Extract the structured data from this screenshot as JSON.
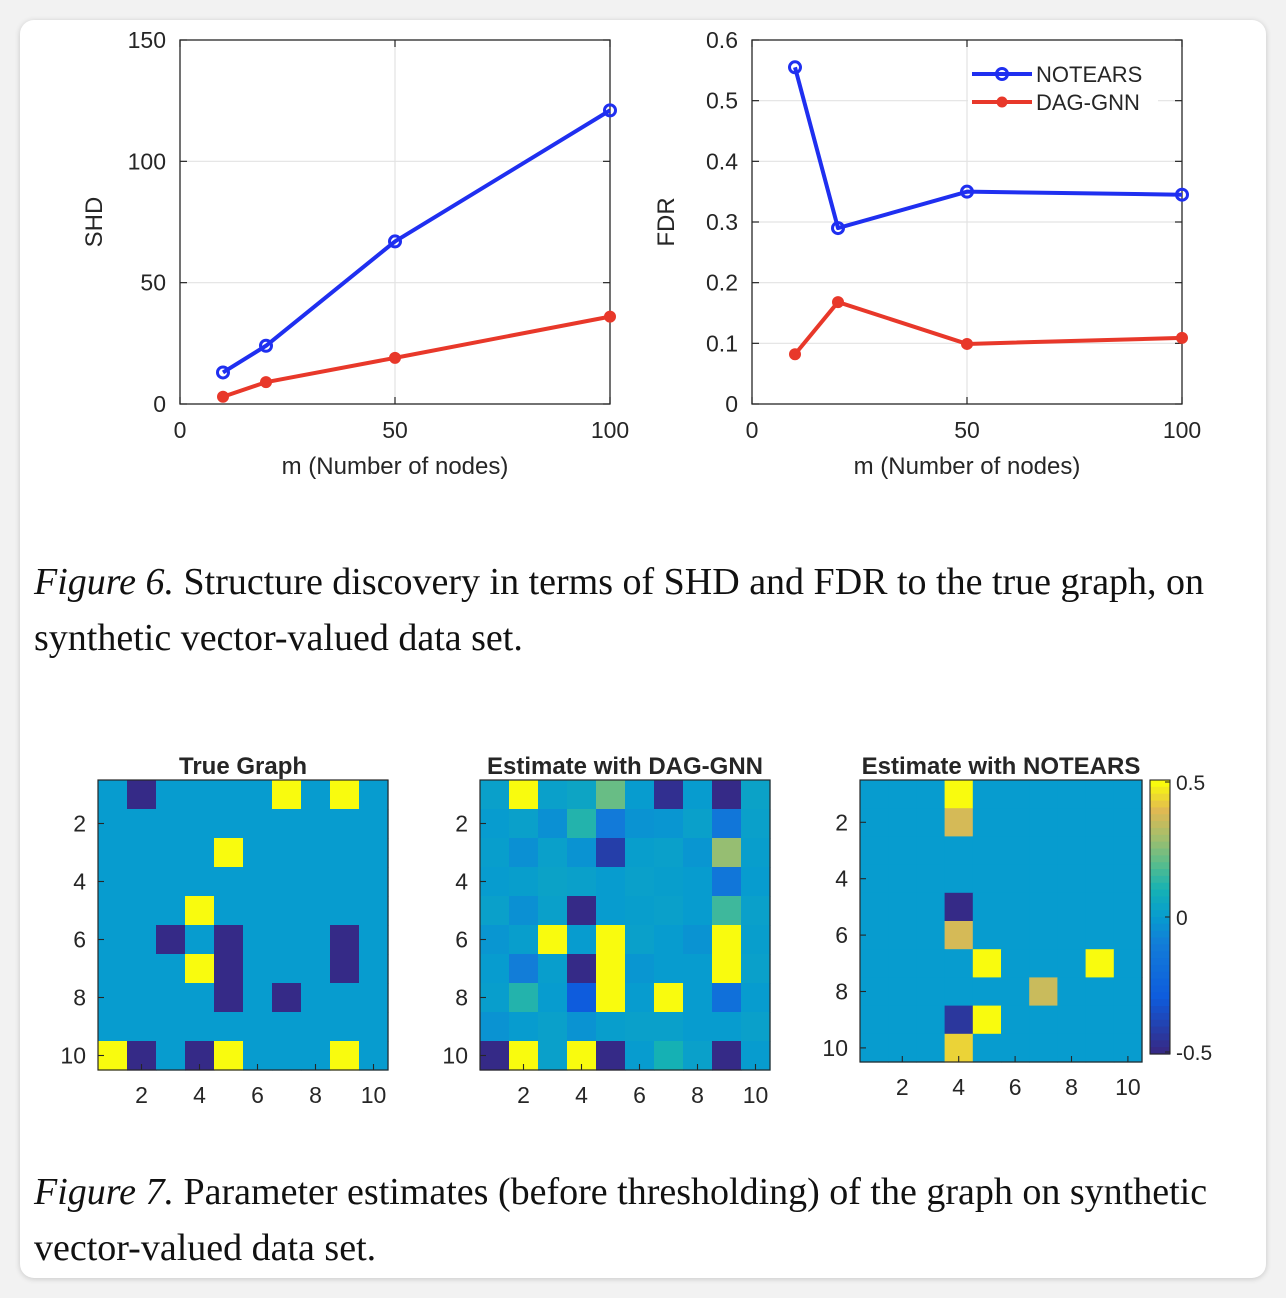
{
  "chart_data": [
    {
      "type": "line",
      "xlabel": "m (Number of nodes)",
      "ylabel": "SHD",
      "xlim": [
        0,
        100
      ],
      "ylim": [
        0,
        150
      ],
      "xticks": [
        "0",
        "50",
        "100"
      ],
      "yticks": [
        "0",
        "50",
        "100",
        "150"
      ],
      "grid": true,
      "series": [
        {
          "name": "NOTEARS",
          "color": "#1f2ff0",
          "x": [
            10,
            20,
            50,
            100
          ],
          "y": [
            13,
            24,
            67,
            121
          ]
        },
        {
          "name": "DAG-GNN",
          "color": "#e8382a",
          "x": [
            10,
            20,
            50,
            100
          ],
          "y": [
            3,
            9,
            19,
            36
          ]
        }
      ]
    },
    {
      "type": "line",
      "xlabel": "m (Number of nodes)",
      "ylabel": "FDR",
      "xlim": [
        0,
        100
      ],
      "ylim": [
        0,
        0.6
      ],
      "xticks": [
        "0",
        "50",
        "100"
      ],
      "yticks": [
        "0",
        "0.1",
        "0.2",
        "0.3",
        "0.4",
        "0.5",
        "0.6"
      ],
      "grid": true,
      "legend": "top-right",
      "series": [
        {
          "name": "NOTEARS",
          "color": "#1f2ff0",
          "x": [
            10,
            20,
            50,
            100
          ],
          "y": [
            0.555,
            0.29,
            0.35,
            0.345
          ]
        },
        {
          "name": "DAG-GNN",
          "color": "#e8382a",
          "x": [
            10,
            20,
            50,
            100
          ],
          "y": [
            0.082,
            0.168,
            0.099,
            0.109
          ]
        }
      ]
    },
    {
      "type": "heatmap",
      "title": "True Graph",
      "xticks": [
        "2",
        "4",
        "6",
        "8",
        "10"
      ],
      "yticks": [
        "2",
        "4",
        "6",
        "8",
        "10"
      ],
      "clim": [
        -0.5,
        0.5
      ],
      "matrix": [
        [
          0,
          -0.5,
          0,
          0,
          0,
          0,
          0.5,
          0,
          0.5,
          0
        ],
        [
          0,
          0,
          0,
          0,
          0,
          0,
          0,
          0,
          0,
          0
        ],
        [
          0,
          0,
          0,
          0,
          0.5,
          0,
          0,
          0,
          0,
          0
        ],
        [
          0,
          0,
          0,
          0,
          0,
          0,
          0,
          0,
          0,
          0
        ],
        [
          0,
          0,
          0,
          0.5,
          0,
          0,
          0,
          0,
          0,
          0
        ],
        [
          0,
          0,
          -0.5,
          0,
          -0.5,
          0,
          0,
          0,
          -0.5,
          0
        ],
        [
          0,
          0,
          0,
          0.5,
          -0.5,
          0,
          0,
          0,
          -0.5,
          0
        ],
        [
          0,
          0,
          0,
          0,
          -0.5,
          0,
          -0.5,
          0,
          0,
          0
        ],
        [
          0,
          0,
          0,
          0,
          0,
          0,
          0,
          0,
          0,
          0
        ],
        [
          0.5,
          -0.5,
          0,
          -0.5,
          0.5,
          0,
          0,
          0,
          0.5,
          0
        ]
      ]
    },
    {
      "type": "heatmap",
      "title": "Estimate with DAG-GNN",
      "xticks": [
        "2",
        "4",
        "6",
        "8",
        "10"
      ],
      "yticks": [
        "2",
        "4",
        "6",
        "8",
        "10"
      ],
      "clim": [
        -0.5,
        0.5
      ],
      "matrix": [
        [
          0.02,
          0.5,
          0.02,
          0.04,
          0.22,
          0.0,
          -0.48,
          0.0,
          -0.5,
          0.03
        ],
        [
          0.0,
          0.02,
          -0.04,
          0.12,
          -0.12,
          -0.03,
          -0.02,
          0.02,
          -0.14,
          0.02
        ],
        [
          0.01,
          -0.04,
          0.02,
          -0.03,
          -0.42,
          0.01,
          0.02,
          -0.02,
          0.28,
          0.01
        ],
        [
          0.0,
          0.01,
          0.03,
          0.02,
          0.0,
          0.02,
          0.01,
          0.0,
          -0.14,
          0.0
        ],
        [
          0.02,
          -0.04,
          0.02,
          -0.5,
          0.0,
          0.01,
          0.02,
          0.0,
          0.16,
          0.02
        ],
        [
          -0.02,
          0.01,
          0.5,
          0.0,
          0.5,
          0.02,
          0.0,
          -0.03,
          0.5,
          0.01
        ],
        [
          0.0,
          -0.1,
          0.01,
          -0.5,
          0.5,
          -0.02,
          0.0,
          0.0,
          0.5,
          0.02
        ],
        [
          0.01,
          0.12,
          0.0,
          -0.3,
          0.5,
          0.0,
          0.5,
          0.0,
          -0.18,
          0.0
        ],
        [
          -0.03,
          0.0,
          0.02,
          -0.03,
          0.01,
          0.02,
          0.02,
          0.0,
          0.0,
          0.02
        ],
        [
          -0.5,
          0.5,
          0.02,
          0.5,
          -0.5,
          0.0,
          0.1,
          0.02,
          -0.5,
          0.0
        ]
      ]
    },
    {
      "type": "heatmap",
      "title": "Estimate with NOTEARS",
      "xticks": [
        "2",
        "4",
        "6",
        "8",
        "10"
      ],
      "yticks": [
        "2",
        "4",
        "6",
        "8",
        "10"
      ],
      "clim": [
        -0.5,
        0.5
      ],
      "colorbar": {
        "ticks": [
          "0.5",
          "0",
          "-0.5"
        ]
      },
      "matrix": [
        [
          0,
          0,
          0,
          0.5,
          0,
          0,
          0,
          0,
          0,
          0
        ],
        [
          0,
          0,
          0,
          0.38,
          0,
          0,
          0,
          0,
          0,
          0
        ],
        [
          0,
          0,
          0,
          0,
          0,
          0,
          0,
          0,
          0,
          0
        ],
        [
          0,
          0,
          0,
          0,
          0,
          0,
          0,
          0,
          0,
          0
        ],
        [
          0,
          0,
          0,
          -0.5,
          0,
          0,
          0,
          0,
          0,
          0
        ],
        [
          0,
          0,
          0,
          0.38,
          0,
          0,
          0,
          0,
          0,
          0
        ],
        [
          0,
          0,
          0,
          0,
          0.5,
          0,
          0,
          0,
          0.5,
          0
        ],
        [
          0,
          0,
          0,
          0,
          0,
          0,
          0.36,
          0,
          0,
          0
        ],
        [
          0,
          0,
          0,
          -0.45,
          0.5,
          0,
          0,
          0,
          0,
          0
        ],
        [
          0,
          0,
          0,
          0.44,
          0,
          0,
          0,
          0,
          0,
          0
        ]
      ]
    }
  ],
  "captions": {
    "fig6_label": "Figure 6.",
    "fig6_text": " Structure discovery in terms of SHD and FDR to the true graph, on synthetic vector-valued data set.",
    "fig7_label": "Figure 7.",
    "fig7_text": " Parameter estimates (before thresholding) of the graph on synthetic vector-valued data set."
  }
}
